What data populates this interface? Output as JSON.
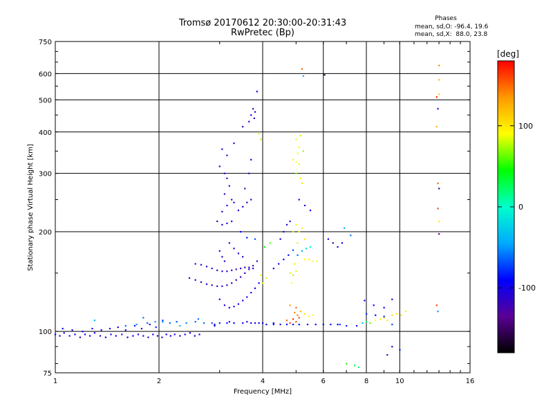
{
  "header": {
    "title": "Tromsø 20170612 20:30:00-20:31:43",
    "subtitle": "RwPretec (Bp)"
  },
  "stats": {
    "heading": "Phases",
    "line_o": "mean, sd,O: -96.4, 19.6",
    "line_x": "mean, sd,X:  88.0, 23.8"
  },
  "chart_data": {
    "type": "scatter",
    "xlabel": "Frequency [MHz]",
    "ylabel": "Stationary phase Virtual Height [km]",
    "xscale": "log",
    "yscale": "log",
    "xlim": [
      1,
      16
    ],
    "ylim": [
      75,
      750
    ],
    "xticks": [
      1,
      2,
      4,
      6,
      8,
      10,
      16
    ],
    "xgrid": [
      2,
      4,
      6,
      8,
      10
    ],
    "yticks": [
      75,
      100,
      200,
      300,
      400,
      500,
      600,
      750
    ],
    "ygrid": [
      100,
      200,
      300,
      400,
      500,
      600
    ],
    "grid": true,
    "colorbar": {
      "label": "[deg]",
      "range": [
        -180,
        180
      ],
      "ticks": [
        -100,
        0,
        100
      ],
      "colors": [
        "#000000",
        "#5a0096",
        "#0000ff",
        "#00aaff",
        "#00ffcc",
        "#00ff00",
        "#ffff00",
        "#ff9900",
        "#ff0000"
      ]
    },
    "points": [
      [
        1.0,
        98,
        -100
      ],
      [
        1.03,
        97,
        -110
      ],
      [
        1.06,
        99,
        -100
      ],
      [
        1.1,
        97,
        -105
      ],
      [
        1.14,
        98,
        -95
      ],
      [
        1.18,
        96,
        -110
      ],
      [
        1.22,
        98,
        -100
      ],
      [
        1.26,
        97,
        -105
      ],
      [
        1.3,
        99,
        -95
      ],
      [
        1.35,
        97,
        -110
      ],
      [
        1.4,
        96,
        -100
      ],
      [
        1.45,
        98,
        -105
      ],
      [
        1.5,
        97,
        -100
      ],
      [
        1.56,
        98,
        -110
      ],
      [
        1.62,
        96,
        -95
      ],
      [
        1.68,
        97,
        -100
      ],
      [
        1.74,
        98,
        -105
      ],
      [
        1.8,
        97,
        -110
      ],
      [
        1.86,
        96,
        -100
      ],
      [
        1.92,
        98,
        -95
      ],
      [
        1.98,
        97,
        -100
      ],
      [
        2.04,
        96,
        -105
      ],
      [
        2.1,
        98,
        -100
      ],
      [
        2.16,
        97,
        -95
      ],
      [
        2.22,
        98,
        -110
      ],
      [
        2.3,
        97,
        -100
      ],
      [
        2.38,
        98,
        -105
      ],
      [
        2.46,
        99,
        -95
      ],
      [
        2.54,
        97,
        -100
      ],
      [
        2.62,
        98,
        -90
      ],
      [
        1.05,
        102,
        -90
      ],
      [
        1.12,
        101,
        -100
      ],
      [
        1.2,
        100,
        -95
      ],
      [
        1.28,
        102,
        -100
      ],
      [
        1.36,
        101,
        -105
      ],
      [
        1.44,
        102,
        -90
      ],
      [
        1.52,
        103,
        -100
      ],
      [
        1.6,
        101,
        -95
      ],
      [
        1.7,
        104,
        -85
      ],
      [
        1.78,
        102,
        -100
      ],
      [
        1.88,
        105,
        -90
      ],
      [
        1.96,
        103,
        -80
      ],
      [
        1.6,
        104,
        -60
      ],
      [
        1.72,
        105,
        -55
      ],
      [
        1.85,
        106,
        -65
      ],
      [
        1.95,
        107,
        -50
      ],
      [
        2.05,
        107,
        -55
      ],
      [
        2.15,
        106,
        -60
      ],
      [
        2.25,
        107,
        -70
      ],
      [
        2.4,
        106,
        -55
      ],
      [
        2.55,
        107,
        -65
      ],
      [
        2.7,
        106,
        -60
      ],
      [
        2.85,
        106,
        -70
      ],
      [
        3.0,
        106,
        -80
      ],
      [
        3.15,
        106,
        -85
      ],
      [
        3.3,
        106,
        -90
      ],
      [
        3.5,
        106,
        -95
      ],
      [
        3.7,
        106,
        -100
      ],
      [
        3.9,
        106,
        -95
      ],
      [
        4.1,
        105,
        -100
      ],
      [
        4.3,
        105,
        -95
      ],
      [
        4.5,
        105,
        -100
      ],
      [
        4.7,
        105,
        -90
      ],
      [
        4.9,
        105,
        -95
      ],
      [
        5.1,
        105,
        -90
      ],
      [
        5.4,
        105,
        -95
      ],
      [
        5.7,
        105,
        -100
      ],
      [
        6.0,
        105,
        -95
      ],
      [
        6.3,
        105,
        -90
      ],
      [
        6.7,
        105,
        -80
      ],
      [
        1.3,
        108,
        -40
      ],
      [
        1.8,
        110,
        -60
      ],
      [
        2.05,
        108,
        -70
      ],
      [
        2.3,
        104,
        -30
      ],
      [
        2.6,
        109,
        -60
      ],
      [
        2.9,
        104,
        -90
      ],
      [
        3.6,
        107,
        -100
      ],
      [
        3.8,
        106,
        -110
      ],
      [
        4.0,
        106,
        -100
      ],
      [
        4.3,
        106,
        -105
      ],
      [
        3.2,
        107,
        -110
      ],
      [
        2.9,
        105,
        -115
      ],
      [
        2.45,
        145,
        -110
      ],
      [
        2.55,
        143,
        -115
      ],
      [
        2.65,
        141,
        -105
      ],
      [
        2.75,
        139,
        -110
      ],
      [
        2.85,
        138,
        -120
      ],
      [
        2.95,
        137,
        -115
      ],
      [
        3.05,
        137,
        -110
      ],
      [
        3.15,
        138,
        -120
      ],
      [
        3.25,
        140,
        -115
      ],
      [
        3.35,
        143,
        -110
      ],
      [
        3.45,
        146,
        -120
      ],
      [
        3.55,
        150,
        -115
      ],
      [
        3.65,
        154,
        -110
      ],
      [
        3.75,
        158,
        -120
      ],
      [
        3.85,
        163,
        -115
      ],
      [
        2.55,
        160,
        -110
      ],
      [
        2.65,
        159,
        -115
      ],
      [
        2.75,
        157,
        -105
      ],
      [
        2.85,
        155,
        -110
      ],
      [
        2.95,
        153,
        -120
      ],
      [
        3.05,
        152,
        -115
      ],
      [
        3.15,
        152,
        -110
      ],
      [
        3.25,
        153,
        -115
      ],
      [
        3.35,
        154,
        -120
      ],
      [
        3.45,
        155,
        -110
      ],
      [
        3.55,
        156,
        -115
      ],
      [
        3.65,
        156,
        -120
      ],
      [
        3.75,
        155,
        -110
      ],
      [
        3.0,
        125,
        -100
      ],
      [
        3.1,
        120,
        -105
      ],
      [
        3.2,
        118,
        -95
      ],
      [
        3.3,
        119,
        -110
      ],
      [
        3.4,
        121,
        -100
      ],
      [
        3.5,
        124,
        -95
      ],
      [
        3.6,
        127,
        -105
      ],
      [
        3.7,
        131,
        -100
      ],
      [
        3.8,
        135,
        -90
      ],
      [
        3.9,
        140,
        -95
      ],
      [
        3.0,
        175,
        -110
      ],
      [
        3.05,
        168,
        -115
      ],
      [
        3.1,
        163,
        -105
      ],
      [
        3.2,
        185,
        -110
      ],
      [
        3.3,
        178,
        -115
      ],
      [
        3.4,
        172,
        -105
      ],
      [
        3.5,
        168,
        -110
      ],
      [
        2.95,
        215,
        -110
      ],
      [
        3.05,
        210,
        -115
      ],
      [
        3.15,
        212,
        -105
      ],
      [
        3.25,
        215,
        -110
      ],
      [
        3.05,
        230,
        -120
      ],
      [
        3.15,
        240,
        -115
      ],
      [
        3.25,
        250,
        -110
      ],
      [
        3.1,
        260,
        -120
      ],
      [
        3.2,
        275,
        -115
      ],
      [
        3.15,
        290,
        -110
      ],
      [
        3.1,
        300,
        -120
      ],
      [
        3.0,
        315,
        -110
      ],
      [
        3.3,
        245,
        -115
      ],
      [
        3.4,
        232,
        -105
      ],
      [
        3.5,
        238,
        -110
      ],
      [
        3.6,
        245,
        -115
      ],
      [
        3.7,
        250,
        -110
      ],
      [
        3.55,
        270,
        -120
      ],
      [
        3.65,
        300,
        -115
      ],
      [
        3.7,
        330,
        -110
      ],
      [
        3.05,
        355,
        -110
      ],
      [
        3.15,
        340,
        -115
      ],
      [
        3.3,
        370,
        -110
      ],
      [
        3.5,
        415,
        -120
      ],
      [
        3.65,
        430,
        -115
      ],
      [
        3.7,
        450,
        -110
      ],
      [
        3.75,
        470,
        -120
      ],
      [
        3.78,
        440,
        -115
      ],
      [
        3.8,
        460,
        -110
      ],
      [
        3.85,
        530,
        -100
      ],
      [
        3.9,
        395,
        80
      ],
      [
        3.95,
        380,
        75
      ],
      [
        3.45,
        200,
        -90
      ],
      [
        3.6,
        192,
        -85
      ],
      [
        3.8,
        190,
        -70
      ],
      [
        4.0,
        140,
        85
      ],
      [
        4.1,
        145,
        80
      ],
      [
        3.95,
        148,
        90
      ],
      [
        4.05,
        180,
        40
      ],
      [
        4.2,
        185,
        60
      ],
      [
        4.3,
        155,
        -100
      ],
      [
        4.45,
        160,
        -95
      ],
      [
        4.6,
        165,
        -90
      ],
      [
        4.75,
        170,
        -85
      ],
      [
        4.9,
        176,
        -70
      ],
      [
        5.05,
        170,
        -60
      ],
      [
        5.2,
        175,
        -40
      ],
      [
        5.35,
        178,
        -20
      ],
      [
        5.5,
        180,
        0
      ],
      [
        5.3,
        165,
        90
      ],
      [
        5.45,
        165,
        95
      ],
      [
        5.6,
        163,
        90
      ],
      [
        5.75,
        163,
        88
      ],
      [
        4.6,
        200,
        -100
      ],
      [
        4.7,
        210,
        -110
      ],
      [
        4.8,
        215,
        -105
      ],
      [
        4.5,
        190,
        -95
      ],
      [
        4.8,
        150,
        80
      ],
      [
        4.9,
        148,
        75
      ],
      [
        5.0,
        152,
        85
      ],
      [
        4.85,
        140,
        90
      ],
      [
        4.95,
        160,
        100
      ],
      [
        4.9,
        330,
        95
      ],
      [
        5.0,
        325,
        90
      ],
      [
        5.1,
        320,
        85
      ],
      [
        5.0,
        300,
        70
      ],
      [
        5.15,
        290,
        95
      ],
      [
        5.2,
        280,
        100
      ],
      [
        5.05,
        345,
        88
      ],
      [
        5.1,
        360,
        92
      ],
      [
        5.0,
        380,
        85
      ],
      [
        5.15,
        390,
        80
      ],
      [
        5.1,
        250,
        -90
      ],
      [
        5.3,
        240,
        -100
      ],
      [
        5.5,
        232,
        -95
      ],
      [
        5.25,
        350,
        70
      ],
      [
        4.9,
        200,
        80
      ],
      [
        5.0,
        210,
        85
      ],
      [
        5.1,
        200,
        90
      ],
      [
        5.2,
        205,
        95
      ],
      [
        5.05,
        185,
        80
      ],
      [
        5.3,
        190,
        100
      ],
      [
        4.7,
        108,
        150
      ],
      [
        4.8,
        106,
        160
      ],
      [
        4.9,
        109,
        165
      ],
      [
        5.0,
        107,
        155
      ],
      [
        5.1,
        110,
        160
      ],
      [
        4.95,
        114,
        140
      ],
      [
        5.05,
        112,
        145
      ],
      [
        5.15,
        115,
        120
      ],
      [
        5.3,
        113,
        100
      ],
      [
        5.45,
        111,
        95
      ],
      [
        5.6,
        112,
        90
      ],
      [
        5.0,
        118,
        150
      ],
      [
        4.8,
        120,
        130
      ],
      [
        5.25,
        590,
        -40
      ],
      [
        5.2,
        620,
        150
      ],
      [
        6.05,
        595,
        -160
      ],
      [
        6.2,
        190,
        -110
      ],
      [
        6.4,
        185,
        -100
      ],
      [
        6.6,
        180,
        -95
      ],
      [
        6.8,
        185,
        -90
      ],
      [
        6.9,
        205,
        -40
      ],
      [
        7.2,
        195,
        -60
      ],
      [
        7.0,
        80,
        50
      ],
      [
        7.4,
        79,
        30
      ],
      [
        7.6,
        78,
        20
      ],
      [
        6.6,
        105,
        -100
      ],
      [
        7.0,
        104,
        -80
      ],
      [
        7.5,
        104,
        -100
      ],
      [
        7.8,
        106,
        -40
      ],
      [
        8.0,
        107,
        20
      ],
      [
        8.2,
        106,
        60
      ],
      [
        8.5,
        108,
        90
      ],
      [
        8.8,
        109,
        100
      ],
      [
        9.0,
        110,
        105
      ],
      [
        9.2,
        108,
        95
      ],
      [
        9.5,
        112,
        100
      ],
      [
        9.8,
        113,
        105
      ],
      [
        10.1,
        112,
        100
      ],
      [
        10.4,
        115,
        95
      ],
      [
        8.0,
        113,
        -80
      ],
      [
        8.5,
        112,
        -90
      ],
      [
        9.0,
        111,
        -80
      ],
      [
        9.5,
        105,
        -70
      ],
      [
        7.9,
        124,
        -100
      ],
      [
        8.4,
        120,
        -95
      ],
      [
        9.0,
        118,
        -90
      ],
      [
        9.5,
        125,
        -100
      ],
      [
        9.5,
        90,
        -110
      ],
      [
        9.2,
        85,
        -120
      ],
      [
        10.0,
        88,
        -80
      ],
      [
        13.0,
        635,
        140
      ],
      [
        13.0,
        575,
        120
      ],
      [
        13.0,
        520,
        110
      ],
      [
        12.8,
        510,
        170
      ],
      [
        12.9,
        470,
        -110
      ],
      [
        12.8,
        415,
        120
      ],
      [
        12.9,
        280,
        150
      ],
      [
        13.0,
        270,
        -120
      ],
      [
        12.9,
        235,
        160
      ],
      [
        13.0,
        215,
        100
      ],
      [
        12.8,
        120,
        160
      ],
      [
        12.9,
        115,
        -50
      ],
      [
        13.0,
        197,
        -140
      ]
    ]
  }
}
